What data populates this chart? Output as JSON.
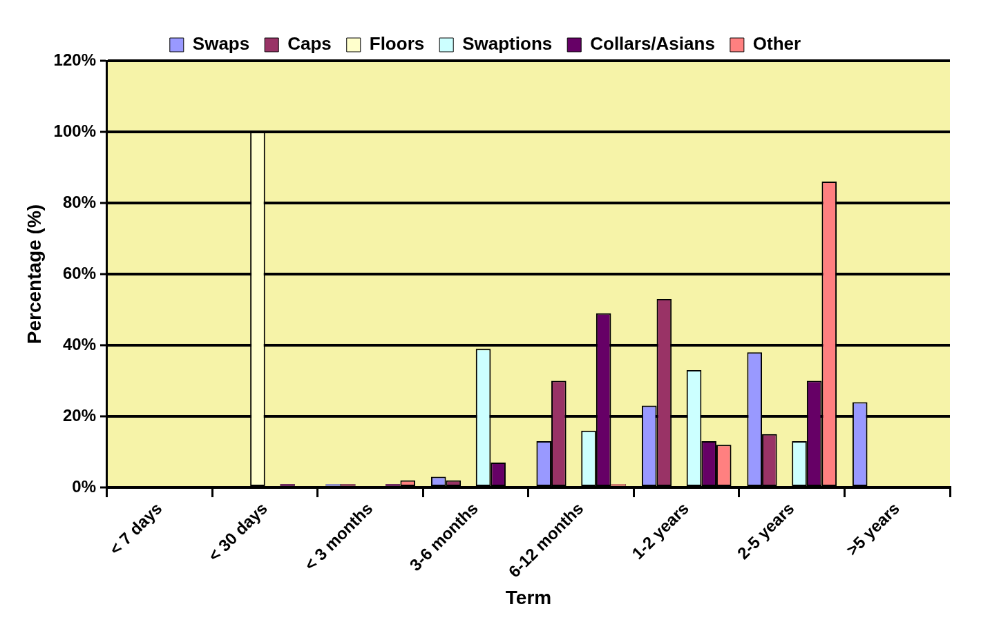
{
  "chart_data": {
    "type": "bar",
    "xlabel": "Term",
    "ylabel": "Percentage (%)",
    "categories": [
      "< 7 days",
      "< 30 days",
      "< 3 months",
      "3-6 months",
      "6-12 months",
      "1-2 years",
      "2-5 years",
      ">5 years"
    ],
    "series": [
      {
        "name": "Swaps",
        "color": "#9999ff",
        "values": [
          null,
          null,
          1,
          3,
          13,
          23,
          38,
          24
        ]
      },
      {
        "name": "Caps",
        "color": "#993366",
        "values": [
          null,
          null,
          1,
          2,
          30,
          53,
          15,
          null
        ]
      },
      {
        "name": "Floors",
        "color": "#ffffcc",
        "values": [
          null,
          100,
          null,
          null,
          null,
          null,
          null,
          null
        ]
      },
      {
        "name": "Swaptions",
        "color": "#ccffff",
        "values": [
          null,
          null,
          null,
          39,
          16,
          33,
          13,
          null
        ]
      },
      {
        "name": "Collars/Asians",
        "color": "#660066",
        "values": [
          null,
          1,
          1,
          7,
          49,
          13,
          30,
          null
        ]
      },
      {
        "name": "Other",
        "color": "#ff8080",
        "values": [
          null,
          null,
          2,
          null,
          1,
          12,
          86,
          null
        ]
      }
    ],
    "ylim": [
      0,
      120
    ],
    "yticks": [
      {
        "value": 0,
        "label": "0%"
      },
      {
        "value": 20,
        "label": "20%"
      },
      {
        "value": 40,
        "label": "40%"
      },
      {
        "value": 60,
        "label": "60%"
      },
      {
        "value": 80,
        "label": "80%"
      },
      {
        "value": 100,
        "label": "100%"
      },
      {
        "value": 120,
        "label": "120%"
      }
    ],
    "grid": "y",
    "legend": "top"
  }
}
